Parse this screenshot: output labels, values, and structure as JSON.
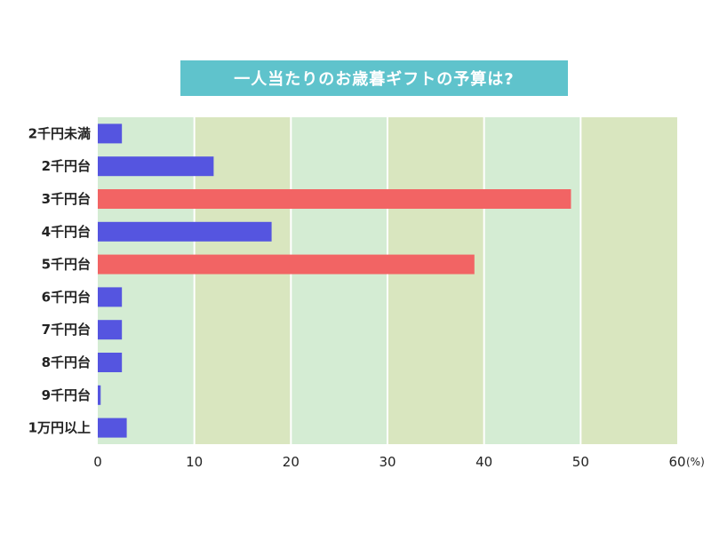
{
  "chart_data": {
    "type": "bar",
    "orientation": "horizontal",
    "title": "一人当たりのお歳暮ギフトの予算は?",
    "categories": [
      "2千円未満",
      "2千円台",
      "3千円台",
      "4千円台",
      "5千円台",
      "6千円台",
      "7千円台",
      "8千円台",
      "9千円台",
      "1万円以上"
    ],
    "values": [
      2.5,
      12,
      49,
      18,
      39,
      2.5,
      2.5,
      2.5,
      0.3,
      3
    ],
    "highlight": [
      false,
      false,
      true,
      false,
      true,
      false,
      false,
      false,
      false,
      false
    ],
    "xlim": [
      0,
      60
    ],
    "xticks": [
      "0",
      "10",
      "20",
      "30",
      "40",
      "50",
      "60"
    ],
    "x_unit": "(%)",
    "grid": true,
    "colors": {
      "bar": "#5555e0",
      "bar_highlight": "#f26464",
      "band_light": "#d4ecd3",
      "band_dark": "#d9e6bf",
      "grid_line": "#ffffff"
    }
  }
}
